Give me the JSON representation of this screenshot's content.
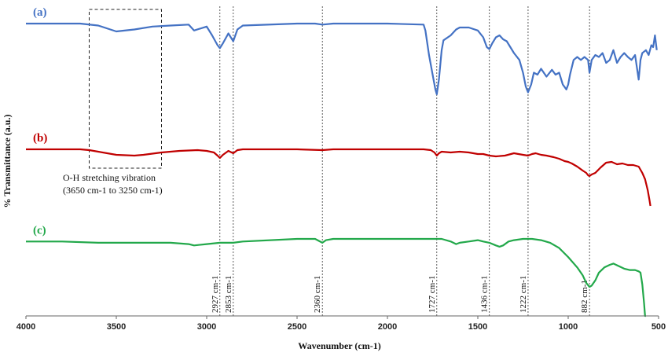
{
  "chart_data": {
    "type": "line",
    "xlabel": "Wavenumber (cm-1)",
    "ylabel": "% Transmittance (a.u.)",
    "xlim": [
      4000,
      500
    ],
    "x_reversed": true,
    "x_ticks": [
      "4000",
      "3500",
      "3000",
      "2500",
      "2000",
      "1500",
      "1000",
      "500"
    ],
    "grid": false,
    "series": [
      {
        "name": "(a)",
        "color": "#4472C4",
        "points": [
          [
            4000,
            0.92
          ],
          [
            3800,
            0.92
          ],
          [
            3700,
            0.92
          ],
          [
            3600,
            0.9
          ],
          [
            3500,
            0.84
          ],
          [
            3400,
            0.86
          ],
          [
            3300,
            0.89
          ],
          [
            3200,
            0.9
          ],
          [
            3100,
            0.91
          ],
          [
            3070,
            0.85
          ],
          [
            3000,
            0.89
          ],
          [
            2970,
            0.8
          ],
          [
            2940,
            0.7
          ],
          [
            2927,
            0.67
          ],
          [
            2910,
            0.72
          ],
          [
            2880,
            0.82
          ],
          [
            2853,
            0.74
          ],
          [
            2830,
            0.86
          ],
          [
            2800,
            0.9
          ],
          [
            2500,
            0.92
          ],
          [
            2400,
            0.92
          ],
          [
            2360,
            0.91
          ],
          [
            2300,
            0.92
          ],
          [
            2000,
            0.92
          ],
          [
            1800,
            0.91
          ],
          [
            1790,
            0.85
          ],
          [
            1770,
            0.6
          ],
          [
            1750,
            0.4
          ],
          [
            1735,
            0.25
          ],
          [
            1727,
            0.2
          ],
          [
            1715,
            0.35
          ],
          [
            1700,
            0.65
          ],
          [
            1690,
            0.75
          ],
          [
            1650,
            0.8
          ],
          [
            1620,
            0.86
          ],
          [
            1600,
            0.88
          ],
          [
            1550,
            0.88
          ],
          [
            1500,
            0.85
          ],
          [
            1470,
            0.78
          ],
          [
            1450,
            0.68
          ],
          [
            1436,
            0.66
          ],
          [
            1420,
            0.72
          ],
          [
            1400,
            0.78
          ],
          [
            1380,
            0.8
          ],
          [
            1360,
            0.76
          ],
          [
            1340,
            0.74
          ],
          [
            1300,
            0.62
          ],
          [
            1270,
            0.55
          ],
          [
            1250,
            0.42
          ],
          [
            1235,
            0.28
          ],
          [
            1222,
            0.22
          ],
          [
            1205,
            0.3
          ],
          [
            1190,
            0.42
          ],
          [
            1170,
            0.4
          ],
          [
            1150,
            0.46
          ],
          [
            1120,
            0.38
          ],
          [
            1090,
            0.45
          ],
          [
            1070,
            0.4
          ],
          [
            1050,
            0.42
          ],
          [
            1030,
            0.3
          ],
          [
            1010,
            0.25
          ],
          [
            1000,
            0.3
          ],
          [
            990,
            0.4
          ],
          [
            970,
            0.55
          ],
          [
            950,
            0.58
          ],
          [
            930,
            0.55
          ],
          [
            910,
            0.58
          ],
          [
            890,
            0.55
          ],
          [
            882,
            0.42
          ],
          [
            870,
            0.55
          ],
          [
            850,
            0.6
          ],
          [
            830,
            0.58
          ],
          [
            810,
            0.62
          ],
          [
            790,
            0.52
          ],
          [
            770,
            0.55
          ],
          [
            750,
            0.65
          ],
          [
            730,
            0.52
          ],
          [
            710,
            0.58
          ],
          [
            690,
            0.62
          ],
          [
            670,
            0.58
          ],
          [
            650,
            0.55
          ],
          [
            630,
            0.6
          ],
          [
            610,
            0.35
          ],
          [
            600,
            0.55
          ],
          [
            590,
            0.62
          ],
          [
            570,
            0.65
          ],
          [
            555,
            0.6
          ],
          [
            540,
            0.7
          ],
          [
            530,
            0.68
          ],
          [
            520,
            0.8
          ],
          [
            510,
            0.65
          ]
        ]
      },
      {
        "name": "(b)",
        "color": "#C00000",
        "points": [
          [
            4000,
            0.6
          ],
          [
            3800,
            0.6
          ],
          [
            3700,
            0.6
          ],
          [
            3650,
            0.59
          ],
          [
            3600,
            0.57
          ],
          [
            3500,
            0.53
          ],
          [
            3400,
            0.52
          ],
          [
            3350,
            0.53
          ],
          [
            3250,
            0.56
          ],
          [
            3150,
            0.58
          ],
          [
            3050,
            0.59
          ],
          [
            3000,
            0.58
          ],
          [
            2960,
            0.56
          ],
          [
            2940,
            0.52
          ],
          [
            2927,
            0.49
          ],
          [
            2910,
            0.53
          ],
          [
            2880,
            0.58
          ],
          [
            2853,
            0.55
          ],
          [
            2830,
            0.59
          ],
          [
            2800,
            0.6
          ],
          [
            2500,
            0.6
          ],
          [
            2360,
            0.59
          ],
          [
            2300,
            0.6
          ],
          [
            2000,
            0.6
          ],
          [
            1800,
            0.6
          ],
          [
            1760,
            0.59
          ],
          [
            1740,
            0.56
          ],
          [
            1727,
            0.52
          ],
          [
            1715,
            0.55
          ],
          [
            1700,
            0.57
          ],
          [
            1650,
            0.56
          ],
          [
            1600,
            0.57
          ],
          [
            1550,
            0.56
          ],
          [
            1500,
            0.54
          ],
          [
            1470,
            0.54
          ],
          [
            1436,
            0.52
          ],
          [
            1400,
            0.51
          ],
          [
            1350,
            0.52
          ],
          [
            1300,
            0.55
          ],
          [
            1250,
            0.53
          ],
          [
            1222,
            0.52
          ],
          [
            1200,
            0.54
          ],
          [
            1180,
            0.55
          ],
          [
            1150,
            0.53
          ],
          [
            1120,
            0.52
          ],
          [
            1080,
            0.5
          ],
          [
            1050,
            0.48
          ],
          [
            1020,
            0.45
          ],
          [
            1000,
            0.44
          ],
          [
            980,
            0.42
          ],
          [
            950,
            0.38
          ],
          [
            920,
            0.33
          ],
          [
            900,
            0.3
          ],
          [
            890,
            0.27
          ],
          [
            882,
            0.26
          ],
          [
            870,
            0.28
          ],
          [
            850,
            0.3
          ],
          [
            820,
            0.37
          ],
          [
            790,
            0.43
          ],
          [
            760,
            0.44
          ],
          [
            730,
            0.41
          ],
          [
            700,
            0.42
          ],
          [
            670,
            0.4
          ],
          [
            640,
            0.4
          ],
          [
            610,
            0.38
          ],
          [
            590,
            0.3
          ],
          [
            575,
            0.22
          ],
          [
            560,
            0.08
          ],
          [
            550,
            -0.05
          ],
          [
            545,
            -0.12
          ]
        ]
      },
      {
        "name": "(c)",
        "color": "#22A84A",
        "points": [
          [
            4000,
            0.38
          ],
          [
            3800,
            0.38
          ],
          [
            3600,
            0.37
          ],
          [
            3400,
            0.37
          ],
          [
            3200,
            0.37
          ],
          [
            3100,
            0.36
          ],
          [
            3070,
            0.35
          ],
          [
            3000,
            0.36
          ],
          [
            2927,
            0.37
          ],
          [
            2853,
            0.37
          ],
          [
            2800,
            0.38
          ],
          [
            2500,
            0.4
          ],
          [
            2400,
            0.4
          ],
          [
            2360,
            0.37
          ],
          [
            2340,
            0.39
          ],
          [
            2300,
            0.4
          ],
          [
            2000,
            0.4
          ],
          [
            1800,
            0.4
          ],
          [
            1727,
            0.4
          ],
          [
            1700,
            0.4
          ],
          [
            1650,
            0.38
          ],
          [
            1620,
            0.36
          ],
          [
            1600,
            0.37
          ],
          [
            1550,
            0.38
          ],
          [
            1500,
            0.39
          ],
          [
            1470,
            0.38
          ],
          [
            1436,
            0.37
          ],
          [
            1400,
            0.35
          ],
          [
            1380,
            0.34
          ],
          [
            1360,
            0.35
          ],
          [
            1330,
            0.38
          ],
          [
            1300,
            0.39
          ],
          [
            1250,
            0.4
          ],
          [
            1200,
            0.4
          ],
          [
            1150,
            0.39
          ],
          [
            1100,
            0.37
          ],
          [
            1050,
            0.33
          ],
          [
            1000,
            0.26
          ],
          [
            950,
            0.18
          ],
          [
            920,
            0.12
          ],
          [
            900,
            0.06
          ],
          [
            882,
            0.03
          ],
          [
            870,
            0.04
          ],
          [
            850,
            0.08
          ],
          [
            830,
            0.14
          ],
          [
            800,
            0.18
          ],
          [
            770,
            0.2
          ],
          [
            750,
            0.21
          ],
          [
            720,
            0.19
          ],
          [
            690,
            0.17
          ],
          [
            660,
            0.16
          ],
          [
            630,
            0.16
          ],
          [
            610,
            0.15
          ],
          [
            600,
            0.14
          ],
          [
            590,
            0.05
          ],
          [
            580,
            -0.1
          ],
          [
            575,
            -0.2
          ],
          [
            570,
            -0.3
          ]
        ]
      }
    ],
    "peak_lines": [
      "2927",
      "2853",
      "2360",
      "1727",
      "1436",
      "1222",
      "882"
    ],
    "peak_labels": [
      "2927 cm-1",
      "2853 cm-1",
      "2360 cm-1",
      "1727 cm-1",
      "1436 cm-1",
      "1222 cm-1",
      "882 cm-1"
    ],
    "annotation": {
      "text_line1": "O-H stretching vibration",
      "text_line2": "(3650 cm-1 to 3250 cm-1)",
      "box_range": [
        3650,
        3250
      ]
    }
  }
}
